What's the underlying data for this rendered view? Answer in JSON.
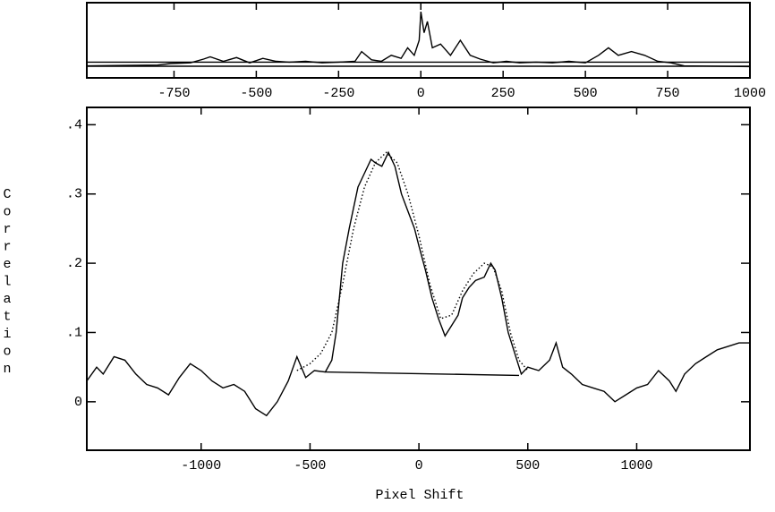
{
  "chart_data": [
    {
      "type": "line",
      "xlim": [
        -1015,
        1000
      ],
      "ylim": [
        0,
        1
      ],
      "xticks": [
        -750,
        -500,
        -250,
        0,
        250,
        500,
        750,
        1000
      ],
      "series": [
        {
          "color": "#000000",
          "x": [
            -1015,
            -800,
            -760,
            -700,
            -660,
            -640,
            -600,
            -560,
            -520,
            -480,
            -440,
            -400,
            -350,
            -300,
            -250,
            -200,
            -180,
            -150,
            -120,
            -90,
            -60,
            -40,
            -20,
            -5,
            0,
            10,
            20,
            35,
            60,
            90,
            120,
            150,
            180,
            220,
            260,
            300,
            350,
            400,
            450,
            500,
            540,
            570,
            600,
            640,
            680,
            720,
            760,
            800,
            1000
          ],
          "values": [
            0.16,
            0.17,
            0.19,
            0.2,
            0.25,
            0.28,
            0.22,
            0.27,
            0.2,
            0.26,
            0.22,
            0.21,
            0.22,
            0.2,
            0.21,
            0.22,
            0.35,
            0.24,
            0.22,
            0.3,
            0.26,
            0.4,
            0.3,
            0.5,
            0.88,
            0.6,
            0.75,
            0.4,
            0.45,
            0.3,
            0.5,
            0.3,
            0.25,
            0.2,
            0.22,
            0.2,
            0.21,
            0.2,
            0.22,
            0.2,
            0.3,
            0.4,
            0.3,
            0.35,
            0.3,
            0.22,
            0.2,
            0.16,
            0.15
          ]
        },
        {
          "color": "#000000",
          "x": [
            -1015,
            1000
          ],
          "values": [
            0.21,
            0.21
          ]
        },
        {
          "color": "#000000",
          "x": [
            -1015,
            1000
          ],
          "values": [
            0.155,
            0.155
          ]
        }
      ]
    },
    {
      "type": "line",
      "xlabel": "Pixel Shift",
      "ylabel": "Correlation",
      "xlim": [
        -1525,
        1520
      ],
      "ylim": [
        -0.07,
        0.425
      ],
      "xticks": [
        -1000,
        -500,
        0,
        500,
        1000
      ],
      "yticks": [
        {
          "value": 0,
          "label": "0"
        },
        {
          "value": 0.1,
          "label": ".1"
        },
        {
          "value": 0.2,
          "label": ".2"
        },
        {
          "value": 0.3,
          "label": ".3"
        },
        {
          "value": 0.4,
          "label": ".4"
        }
      ],
      "series": [
        {
          "color": "#000000",
          "x": [
            -1525,
            -1480,
            -1450,
            -1400,
            -1350,
            -1300,
            -1250,
            -1200,
            -1150,
            -1100,
            -1050,
            -1000,
            -950,
            -900,
            -850,
            -800,
            -750,
            -700,
            -650,
            -600,
            -560,
            -520,
            -480,
            -430,
            -400,
            -380,
            -350,
            -320,
            -300,
            -280,
            -250,
            -220,
            -200,
            -170,
            -140,
            -110,
            -80,
            -50,
            -20,
            0,
            30,
            60,
            90,
            120,
            150,
            180,
            200,
            230,
            260,
            300,
            330,
            350,
            380,
            410,
            440,
            470,
            500,
            550,
            600,
            630,
            660,
            700,
            750,
            800,
            850,
            900,
            950,
            1000,
            1050,
            1100,
            1150,
            1180,
            1220,
            1270,
            1320,
            1370,
            1420,
            1470,
            1520
          ],
          "values": [
            0.03,
            0.05,
            0.04,
            0.065,
            0.06,
            0.04,
            0.025,
            0.02,
            0.01,
            0.035,
            0.055,
            0.045,
            0.03,
            0.02,
            0.025,
            0.015,
            -0.01,
            -0.02,
            0.0,
            0.03,
            0.065,
            0.035,
            0.045,
            0.043,
            0.06,
            0.1,
            0.2,
            0.25,
            0.28,
            0.31,
            0.33,
            0.35,
            0.345,
            0.34,
            0.36,
            0.34,
            0.3,
            0.275,
            0.25,
            0.225,
            0.19,
            0.15,
            0.12,
            0.095,
            0.11,
            0.125,
            0.15,
            0.165,
            0.175,
            0.18,
            0.2,
            0.19,
            0.15,
            0.1,
            0.07,
            0.04,
            0.05,
            0.045,
            0.06,
            0.085,
            0.05,
            0.04,
            0.025,
            0.02,
            0.015,
            0.0,
            0.01,
            0.02,
            0.025,
            0.045,
            0.03,
            0.015,
            0.04,
            0.055,
            0.065,
            0.075,
            0.08,
            0.085,
            0.085
          ]
        },
        {
          "color": "#000000",
          "dash": true,
          "x": [
            -560,
            -500,
            -450,
            -400,
            -350,
            -300,
            -250,
            -200,
            -150,
            -100,
            -50,
            0,
            50,
            100,
            150,
            200,
            250,
            300,
            340,
            380,
            420,
            460,
            500
          ],
          "values": [
            0.045,
            0.055,
            0.07,
            0.1,
            0.17,
            0.25,
            0.31,
            0.345,
            0.36,
            0.345,
            0.3,
            0.24,
            0.17,
            0.12,
            0.125,
            0.16,
            0.185,
            0.2,
            0.195,
            0.16,
            0.1,
            0.06,
            0.045
          ]
        },
        {
          "color": "#000000",
          "x": [
            -430,
            460
          ],
          "values": [
            0.043,
            0.038
          ]
        }
      ]
    }
  ]
}
